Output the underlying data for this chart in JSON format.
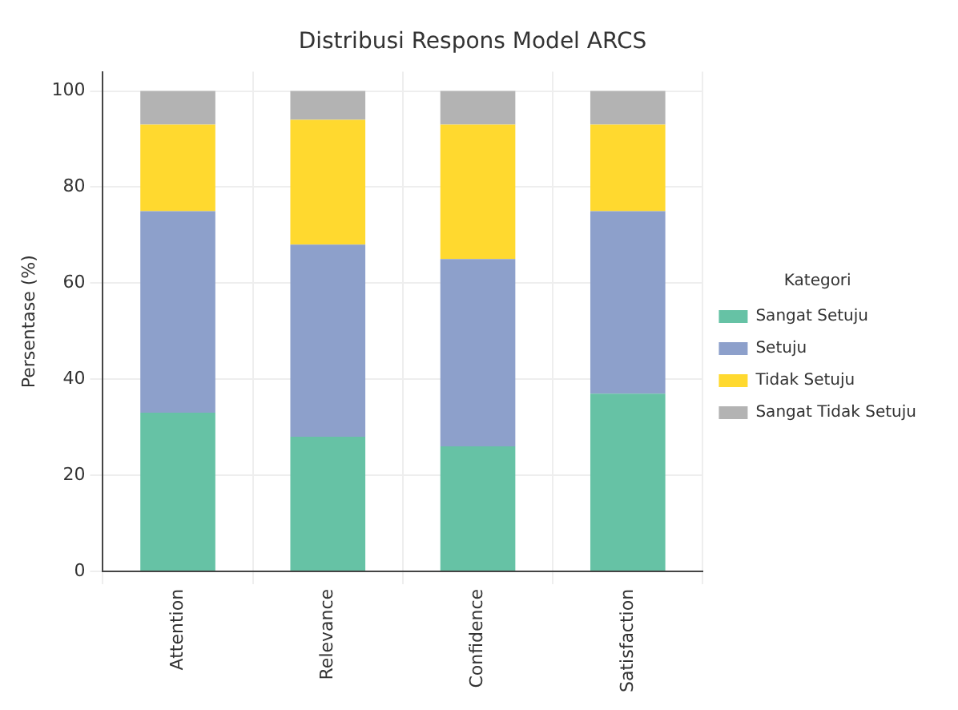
{
  "chart_data": {
    "type": "bar",
    "title": "Distribusi Respons Model ARCS",
    "ylabel": "Persentase (%)",
    "legend_title": "Kategori",
    "categories": [
      "Attention",
      "Relevance",
      "Confidence",
      "Satisfaction"
    ],
    "stacked": true,
    "ylim": [
      0,
      104
    ],
    "yticks": [
      0,
      20,
      40,
      60,
      80,
      100
    ],
    "grid": true,
    "legend": "right",
    "series": [
      {
        "name": "Sangat Setuju",
        "color": "#66c2a5",
        "values": [
          33,
          28,
          26,
          37
        ]
      },
      {
        "name": "Setuju",
        "color": "#8da0cb",
        "values": [
          42,
          40,
          39,
          38
        ]
      },
      {
        "name": "Tidak Setuju",
        "color": "#ffd92f",
        "values": [
          18,
          26,
          28,
          18
        ]
      },
      {
        "name": "Sangat Tidak Setuju",
        "color": "#b3b3b3",
        "values": [
          7,
          6,
          7,
          7
        ]
      }
    ]
  }
}
